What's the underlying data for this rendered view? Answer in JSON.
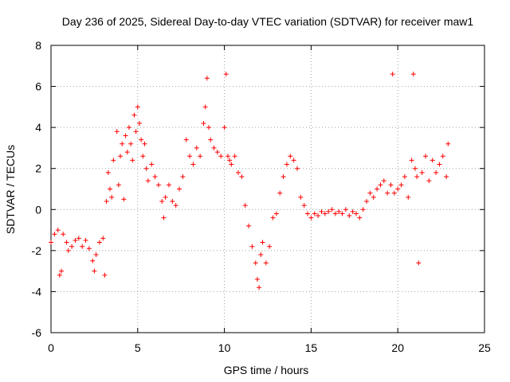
{
  "chart_data": {
    "type": "scatter",
    "title": "Day 236 of 2025, Sidereal Day-to-day VTEC variation (SDTVAR) for receiver maw1",
    "xlabel": "GPS time / hours",
    "ylabel": "SDTVAR / TECUs",
    "xlim": [
      0,
      25
    ],
    "ylim": [
      -6,
      8
    ],
    "xticks": [
      0,
      5,
      10,
      15,
      20,
      25
    ],
    "yticks": [
      -6,
      -4,
      -2,
      0,
      2,
      4,
      6,
      8
    ],
    "xtick_labels": [
      "0",
      "5",
      "10",
      "15",
      "20",
      "25"
    ],
    "ytick_labels": [
      "-6",
      "-4",
      "-2",
      "0",
      "2",
      "4",
      "6",
      "8"
    ],
    "grid": true,
    "marker": "+",
    "color": "#ff0000",
    "series": [
      {
        "name": "SDTVAR",
        "x": [
          0.0,
          0.2,
          0.4,
          0.5,
          0.6,
          0.7,
          0.9,
          1.0,
          1.2,
          1.4,
          1.6,
          1.8,
          2.0,
          2.2,
          2.4,
          2.5,
          2.6,
          2.8,
          3.0,
          3.1,
          3.2,
          3.3,
          3.4,
          3.5,
          3.6,
          3.8,
          3.9,
          4.0,
          4.1,
          4.2,
          4.3,
          4.4,
          4.5,
          4.6,
          4.7,
          4.8,
          4.9,
          5.0,
          5.1,
          5.2,
          5.3,
          5.4,
          5.5,
          5.6,
          5.8,
          6.0,
          6.2,
          6.4,
          6.5,
          6.6,
          6.8,
          7.0,
          7.2,
          7.4,
          7.6,
          7.8,
          8.0,
          8.2,
          8.4,
          8.6,
          8.8,
          8.9,
          9.0,
          9.1,
          9.2,
          9.4,
          9.6,
          9.8,
          10.0,
          10.1,
          10.2,
          10.3,
          10.4,
          10.6,
          10.8,
          11.0,
          11.2,
          11.4,
          11.6,
          11.8,
          11.9,
          12.0,
          12.1,
          12.2,
          12.4,
          12.6,
          12.8,
          13.0,
          13.2,
          13.4,
          13.6,
          13.8,
          14.0,
          14.2,
          14.4,
          14.6,
          14.8,
          15.0,
          15.2,
          15.4,
          15.6,
          15.8,
          16.0,
          16.2,
          16.4,
          16.6,
          16.8,
          17.0,
          17.2,
          17.4,
          17.6,
          17.8,
          18.0,
          18.2,
          18.4,
          18.6,
          18.8,
          19.0,
          19.2,
          19.4,
          19.6,
          19.7,
          19.8,
          20.0,
          20.2,
          20.4,
          20.6,
          20.8,
          20.9,
          21.0,
          21.1,
          21.2,
          21.4,
          21.6,
          21.8,
          22.0,
          22.2,
          22.4,
          22.6,
          22.8,
          22.9
        ],
        "y": [
          -1.6,
          -1.2,
          -1.0,
          -3.2,
          -3.0,
          -1.2,
          -1.6,
          -2.0,
          -1.8,
          -1.5,
          -1.4,
          -1.8,
          -1.5,
          -1.9,
          -2.5,
          -3.0,
          -2.2,
          -1.6,
          -1.4,
          -3.2,
          0.4,
          1.8,
          1.0,
          0.6,
          2.4,
          3.8,
          1.2,
          2.6,
          3.2,
          0.5,
          3.6,
          2.8,
          4.0,
          3.2,
          2.4,
          4.6,
          3.8,
          5.0,
          4.2,
          3.4,
          2.6,
          3.2,
          2.0,
          1.4,
          2.2,
          1.6,
          1.2,
          0.4,
          -0.4,
          0.6,
          1.2,
          0.4,
          0.2,
          1.0,
          1.6,
          3.4,
          2.6,
          2.2,
          3.0,
          2.6,
          4.2,
          5.0,
          6.4,
          4.0,
          3.4,
          3.0,
          2.8,
          2.6,
          4.0,
          6.6,
          2.6,
          2.4,
          2.2,
          2.6,
          1.8,
          1.6,
          0.2,
          -0.8,
          -1.8,
          -2.6,
          -3.4,
          -3.8,
          -2.2,
          -1.6,
          -2.6,
          -1.8,
          -0.4,
          -0.2,
          0.8,
          1.6,
          2.2,
          2.6,
          2.4,
          2.0,
          0.6,
          0.2,
          -0.2,
          -0.4,
          -0.2,
          -0.3,
          -0.1,
          -0.2,
          -0.1,
          0.0,
          -0.2,
          -0.1,
          -0.2,
          0.0,
          -0.3,
          -0.1,
          -0.2,
          -0.4,
          0.0,
          0.4,
          0.8,
          0.6,
          1.0,
          1.2,
          1.4,
          0.8,
          1.2,
          6.6,
          0.8,
          1.0,
          1.2,
          1.6,
          0.6,
          2.4,
          6.6,
          2.0,
          1.6,
          -2.6,
          1.8,
          2.6,
          1.4,
          2.4,
          1.8,
          2.2,
          2.6,
          1.6,
          3.2
        ]
      }
    ]
  }
}
